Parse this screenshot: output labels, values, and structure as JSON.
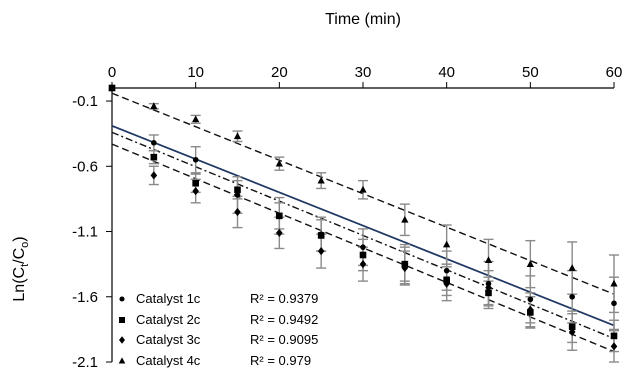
{
  "chart_data": {
    "type": "scatter",
    "title": "",
    "xlabel": "Time (min)",
    "ylabel": "Ln(Cₜ/Cₒ)",
    "ylabel_parts": {
      "main": "Ln(C",
      "sub1": "t",
      "mid": "/C",
      "sub2": "o",
      "end": ")"
    },
    "xlim": [
      0,
      60
    ],
    "ylim": [
      -2.1,
      0.0
    ],
    "x_ticks": [
      "0",
      "10",
      "20",
      "30",
      "40",
      "50",
      "60"
    ],
    "y_ticks": [
      "-0.1",
      "-0.6",
      "-1.1",
      "-1.6",
      "-2.1"
    ],
    "x_axis_position": "top",
    "legend_position": "bottom-left",
    "series": [
      {
        "name": "Catalyst 1c",
        "marker": "circle",
        "trendline": "solid",
        "r2": "R² = 0.9379",
        "x": [
          0,
          5,
          10,
          15,
          20,
          25,
          30,
          35,
          40,
          45,
          50,
          55,
          60
        ],
        "y": [
          0.0,
          -0.42,
          -0.55,
          -0.82,
          -0.98,
          -1.12,
          -1.22,
          -1.35,
          -1.4,
          -1.5,
          -1.62,
          -1.6,
          -1.65
        ],
        "err": [
          0.0,
          0.06,
          0.1,
          0.14,
          0.14,
          0.13,
          0.14,
          0.15,
          0.15,
          0.17,
          0.18,
          0.2,
          0.2
        ]
      },
      {
        "name": "Catalyst 2c",
        "marker": "square",
        "trendline": "dash-dot",
        "r2": "R² = 0.9492",
        "x": [
          0,
          5,
          10,
          15,
          20,
          25,
          30,
          35,
          40,
          45,
          50,
          55,
          60
        ],
        "y": [
          0.0,
          -0.53,
          -0.73,
          -0.78,
          -0.98,
          -1.13,
          -1.28,
          -1.35,
          -1.47,
          -1.57,
          -1.72,
          -1.83,
          -1.9
        ],
        "err": [
          0.0,
          0.05,
          0.07,
          0.07,
          0.1,
          0.12,
          0.12,
          0.13,
          0.12,
          0.12,
          0.12,
          0.12,
          0.12
        ]
      },
      {
        "name": "Catalyst 3c",
        "marker": "diamond",
        "trendline": "dash",
        "r2": "R² = 0.9095",
        "x": [
          0,
          5,
          10,
          15,
          20,
          25,
          30,
          35,
          40,
          45,
          50,
          55,
          60
        ],
        "y": [
          0.0,
          -0.67,
          -0.79,
          -0.95,
          -1.11,
          -1.25,
          -1.35,
          -1.38,
          -1.5,
          -1.53,
          -1.7,
          -1.87,
          -1.98
        ],
        "err": [
          0.0,
          0.07,
          0.09,
          0.12,
          0.12,
          0.13,
          0.13,
          0.13,
          0.13,
          0.13,
          0.13,
          0.14,
          0.12
        ]
      },
      {
        "name": "Catalyst 4c",
        "marker": "triangle",
        "trendline": "dash",
        "r2": "R² = 0.979",
        "x": [
          0,
          5,
          10,
          15,
          20,
          25,
          30,
          35,
          40,
          45,
          50,
          55,
          60
        ],
        "y": [
          0.0,
          -0.14,
          -0.24,
          -0.37,
          -0.58,
          -0.71,
          -0.78,
          -1.01,
          -1.2,
          -1.32,
          -1.35,
          -1.38,
          -1.5
        ],
        "err": [
          0.0,
          0.02,
          0.03,
          0.04,
          0.05,
          0.06,
          0.07,
          0.12,
          0.15,
          0.16,
          0.18,
          0.2,
          0.22
        ]
      }
    ],
    "trendlines": [
      {
        "series": "Catalyst 1c",
        "style": "solid",
        "from": [
          0,
          -0.29
        ],
        "to": [
          60,
          -1.82
        ]
      },
      {
        "series": "Catalyst 2c",
        "style": "dash-dot",
        "from": [
          0,
          -0.34
        ],
        "to": [
          60,
          -1.92
        ]
      },
      {
        "series": "Catalyst 3c",
        "style": "dash",
        "from": [
          0,
          -0.43
        ],
        "to": [
          60,
          -2.02
        ]
      },
      {
        "series": "Catalyst 4c",
        "style": "dash",
        "from": [
          0,
          -0.04
        ],
        "to": [
          60,
          -1.58
        ]
      }
    ]
  }
}
